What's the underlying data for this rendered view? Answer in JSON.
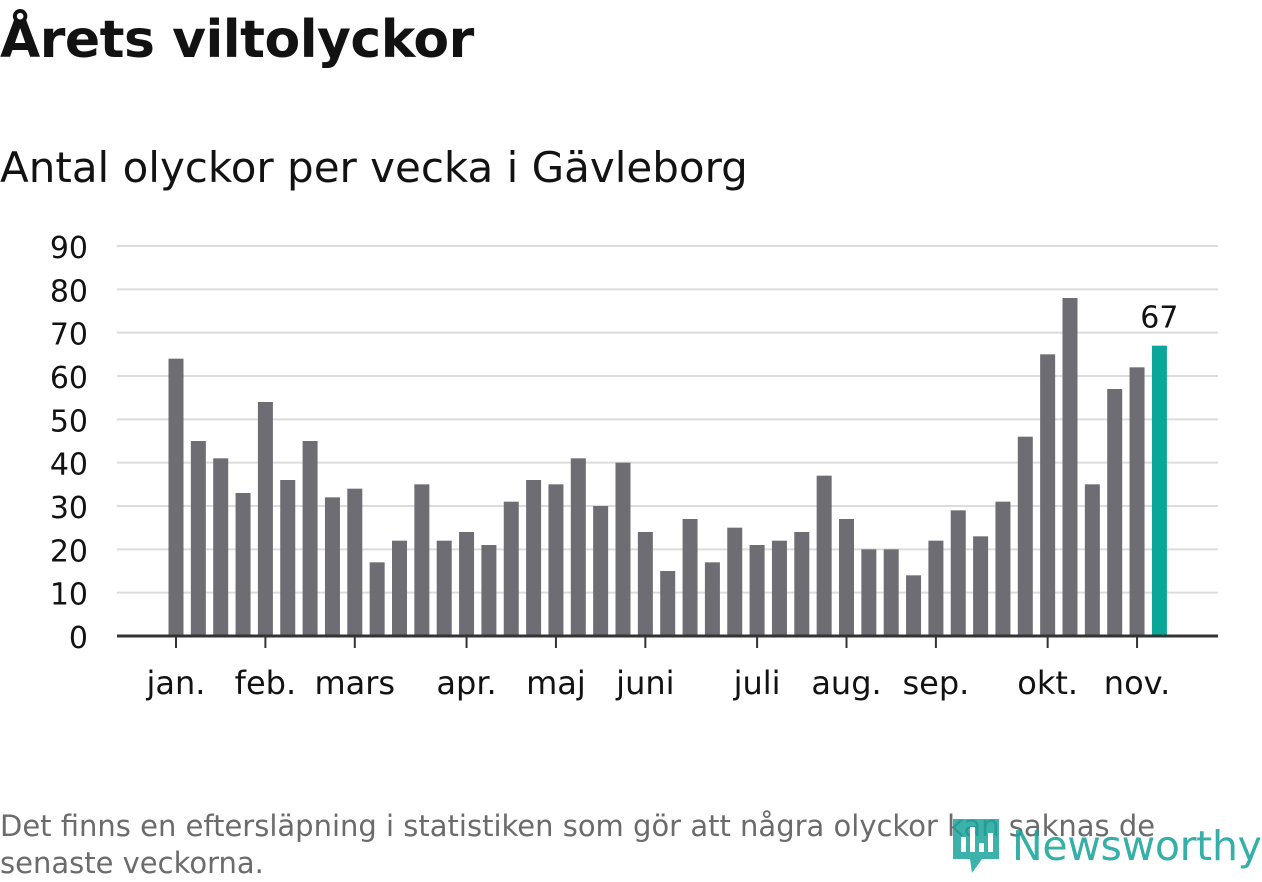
{
  "title": "Årets viltolyckor",
  "subtitle": "Antal olyckor per vecka i Gävleborg",
  "footnote": "Det finns en eftersläpning i statistiken som gör att några olyckor kan saknas de senaste veckorna.",
  "logo": {
    "text": "Newsworthy",
    "icon": "newsworthy-logo-icon"
  },
  "colors": {
    "bar": "#6e6d73",
    "highlight": "#0aa697",
    "grid": "#dcdcdc",
    "axis": "#333333",
    "text": "#121212",
    "footnote": "#6b6b6b",
    "brand": "#1aa59b"
  },
  "chart_data": {
    "type": "bar",
    "title": "Antal olyckor per vecka i Gävleborg",
    "xlabel": "",
    "ylabel": "",
    "ylim": [
      0,
      90
    ],
    "y_ticks": [
      0,
      10,
      20,
      30,
      40,
      50,
      60,
      70,
      80,
      90
    ],
    "grid": true,
    "values": [
      64,
      45,
      41,
      33,
      54,
      36,
      45,
      32,
      34,
      17,
      22,
      35,
      22,
      24,
      21,
      31,
      36,
      35,
      41,
      30,
      40,
      24,
      15,
      27,
      17,
      25,
      21,
      22,
      24,
      37,
      27,
      20,
      20,
      14,
      22,
      29,
      23,
      31,
      46,
      65,
      78,
      35,
      57,
      62,
      67
    ],
    "month_ticks": [
      {
        "label": "jan.",
        "index": 0
      },
      {
        "label": "feb.",
        "index": 4
      },
      {
        "label": "mars",
        "index": 8
      },
      {
        "label": "apr.",
        "index": 13
      },
      {
        "label": "maj",
        "index": 17
      },
      {
        "label": "juni",
        "index": 21
      },
      {
        "label": "juli",
        "index": 26
      },
      {
        "label": "aug.",
        "index": 30
      },
      {
        "label": "sep.",
        "index": 34
      },
      {
        "label": "okt.",
        "index": 39
      },
      {
        "label": "nov.",
        "index": 43
      }
    ],
    "highlight_index": 44,
    "highlight_label": "67"
  }
}
